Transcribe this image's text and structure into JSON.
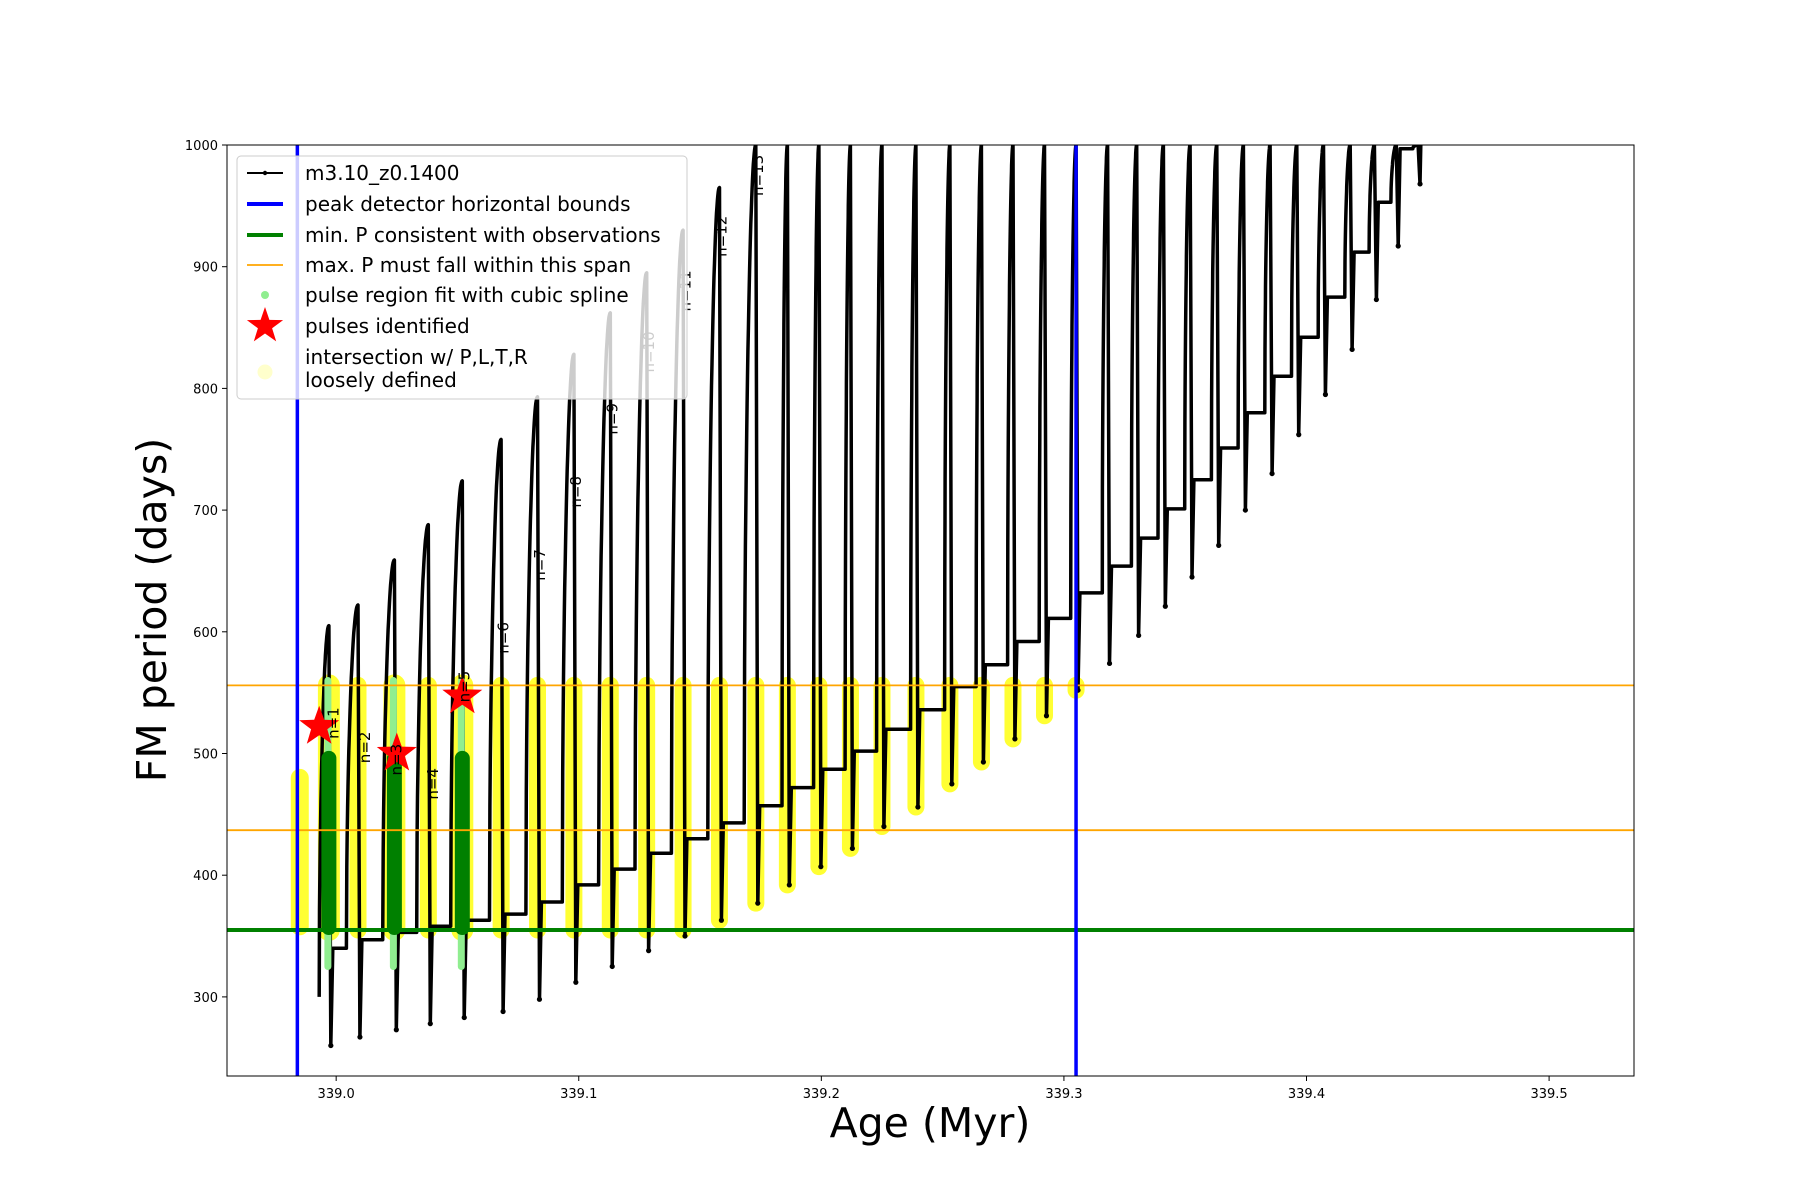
{
  "chart_data": {
    "type": "line",
    "title": "",
    "xlabel": "Age (Myr)",
    "ylabel": "FM period (days)",
    "xlim": [
      338.955,
      339.535
    ],
    "ylim": [
      235,
      1000
    ],
    "xticks": [
      339.0,
      339.1,
      339.2,
      339.3,
      339.4,
      339.5
    ],
    "xtick_labels": [
      "339.0",
      "339.1",
      "339.2",
      "339.3",
      "339.4",
      "339.5"
    ],
    "yticks": [
      300,
      400,
      500,
      600,
      700,
      800,
      900,
      1000
    ],
    "ytick_labels": [
      "300",
      "400",
      "500",
      "600",
      "700",
      "800",
      "900",
      "1000"
    ],
    "grid": false,
    "legend_position": "upper-left",
    "colors": {
      "track": "#000000",
      "bounds": "#0000ff",
      "min_p": "#008000",
      "max_p": "#ffa500",
      "spline": "#90ee90",
      "pulse_star": "#ff0000",
      "intersection": "#ffff00",
      "loose": "#ffffcc"
    },
    "legend": [
      {
        "key": "track",
        "label": "m3.10_z0.1400"
      },
      {
        "key": "bounds",
        "label": "peak detector horizontal bounds"
      },
      {
        "key": "min_p",
        "label": "min. P consistent with observations"
      },
      {
        "key": "max_p",
        "label": "max. P must fall within this span"
      },
      {
        "key": "spline",
        "label": "pulse region fit with cubic spline"
      },
      {
        "key": "pulse_star",
        "label": "pulses identified"
      },
      {
        "key": "intersection",
        "label": "intersection w/ P,L,T,R"
      },
      {
        "key": "loose",
        "label": "loosely defined"
      }
    ],
    "bounds_x": [
      338.984,
      339.305
    ],
    "min_p": 355,
    "max_p": [
      437,
      556
    ],
    "series_name": "m3.10_z0.1400",
    "pulse_labels": [
      {
        "label": "n=1",
        "x": 339.001,
        "y": 525
      },
      {
        "label": "n=2",
        "x": 339.014,
        "y": 505
      },
      {
        "label": "n=3",
        "x": 339.027,
        "y": 495
      },
      {
        "label": "n=4",
        "x": 339.042,
        "y": 475
      },
      {
        "label": "n=5",
        "x": 339.055,
        "y": 555
      },
      {
        "label": "n=6",
        "x": 339.071,
        "y": 595
      },
      {
        "label": "n=7",
        "x": 339.086,
        "y": 655
      },
      {
        "label": "n=8",
        "x": 339.101,
        "y": 715
      },
      {
        "label": "n=9",
        "x": 339.116,
        "y": 775
      },
      {
        "label": "n=10",
        "x": 339.131,
        "y": 830
      },
      {
        "label": "n=11",
        "x": 339.146,
        "y": 880
      },
      {
        "label": "n=12",
        "x": 339.161,
        "y": 925
      },
      {
        "label": "n=13",
        "x": 339.176,
        "y": 975
      }
    ],
    "pulses": [
      {
        "x": 338.997,
        "peak": 605,
        "min": 260,
        "label_top": true
      },
      {
        "x": 339.009,
        "peak": 622,
        "min": 267
      },
      {
        "x": 339.024,
        "peak": 659,
        "min": 273
      },
      {
        "x": 339.038,
        "peak": 688,
        "min": 278
      },
      {
        "x": 339.052,
        "peak": 724,
        "min": 283
      },
      {
        "x": 339.068,
        "peak": 758,
        "min": 288
      },
      {
        "x": 339.083,
        "peak": 793,
        "min": 298
      },
      {
        "x": 339.098,
        "peak": 828,
        "min": 312
      },
      {
        "x": 339.113,
        "peak": 862,
        "min": 325
      },
      {
        "x": 339.128,
        "peak": 895,
        "min": 338
      },
      {
        "x": 339.143,
        "peak": 930,
        "min": 350
      },
      {
        "x": 339.158,
        "peak": 965,
        "min": 363
      },
      {
        "x": 339.173,
        "peak": 1000,
        "min": 377
      },
      {
        "x": 339.186,
        "peak": 1000,
        "min": 392
      },
      {
        "x": 339.199,
        "peak": 1000,
        "min": 407
      },
      {
        "x": 339.212,
        "peak": 1000,
        "min": 422
      },
      {
        "x": 339.225,
        "peak": 1000,
        "min": 440
      },
      {
        "x": 339.239,
        "peak": 1000,
        "min": 456
      },
      {
        "x": 339.253,
        "peak": 1000,
        "min": 475
      },
      {
        "x": 339.266,
        "peak": 1000,
        "min": 493
      },
      {
        "x": 339.279,
        "peak": 1000,
        "min": 512
      },
      {
        "x": 339.292,
        "peak": 1000,
        "min": 531
      },
      {
        "x": 339.305,
        "peak": 1000,
        "min": 552
      },
      {
        "x": 339.318,
        "peak": 1000,
        "min": 574
      },
      {
        "x": 339.33,
        "peak": 1000,
        "min": 597
      },
      {
        "x": 339.341,
        "peak": 1000,
        "min": 621
      },
      {
        "x": 339.352,
        "peak": 1000,
        "min": 645
      },
      {
        "x": 339.363,
        "peak": 1000,
        "min": 671
      },
      {
        "x": 339.374,
        "peak": 1000,
        "min": 700
      },
      {
        "x": 339.385,
        "peak": 1000,
        "min": 730
      },
      {
        "x": 339.396,
        "peak": 1000,
        "min": 762
      },
      {
        "x": 339.407,
        "peak": 1000,
        "min": 795
      },
      {
        "x": 339.418,
        "peak": 1000,
        "min": 832
      },
      {
        "x": 339.428,
        "peak": 1000,
        "min": 873
      },
      {
        "x": 339.437,
        "peak": 1000,
        "min": 917
      },
      {
        "x": 339.446,
        "peak": 1000,
        "min": 968
      }
    ],
    "highlight_pulses": [
      0,
      2,
      4
    ],
    "stars": [
      {
        "x": 338.993,
        "y": 522
      },
      {
        "x": 339.025,
        "y": 500
      },
      {
        "x": 339.052,
        "y": 547
      }
    ]
  }
}
